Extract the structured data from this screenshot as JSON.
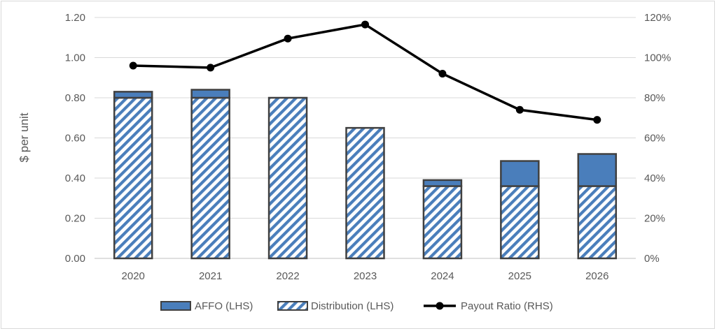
{
  "chart_data": {
    "type": "bar",
    "stacked": true,
    "categories": [
      "2020",
      "2021",
      "2022",
      "2023",
      "2024",
      "2025",
      "2026"
    ],
    "series": [
      {
        "name": "Distribution (LHS)",
        "kind": "bar",
        "axis": "left",
        "pattern": "diagonal-stripes",
        "values": [
          0.8,
          0.8,
          0.8,
          0.65,
          0.36,
          0.36,
          0.36
        ]
      },
      {
        "name": "AFFO (LHS)",
        "kind": "bar",
        "axis": "left",
        "note": "stacked increment above distribution",
        "values": [
          0.03,
          0.04,
          0.0,
          0.0,
          0.03,
          0.125,
          0.16
        ]
      },
      {
        "name": "Payout Ratio (RHS)",
        "kind": "line",
        "axis": "right",
        "values": [
          96,
          95,
          109.5,
          116.5,
          92,
          74,
          69
        ]
      }
    ],
    "title": "",
    "xlabel": "",
    "ylabel": "$ per unit",
    "ylim": [
      0,
      1.2
    ],
    "yticks": [
      "0.00",
      "0.20",
      "0.40",
      "0.60",
      "0.80",
      "1.00",
      "1.20"
    ],
    "y2lim": [
      0,
      120
    ],
    "y2ticks": [
      "0%",
      "20%",
      "40%",
      "60%",
      "80%",
      "100%",
      "120%"
    ],
    "legend": {
      "placement": "bottom",
      "order": [
        "AFFO (LHS)",
        "Distribution (LHS)",
        "Payout Ratio (RHS)"
      ]
    },
    "grid": true,
    "colors": {
      "affo": "#4a7ebb",
      "stripe": "#4a7ebb",
      "outline": "#404040",
      "line": "#000000",
      "grid": "#d9d9d9"
    }
  }
}
